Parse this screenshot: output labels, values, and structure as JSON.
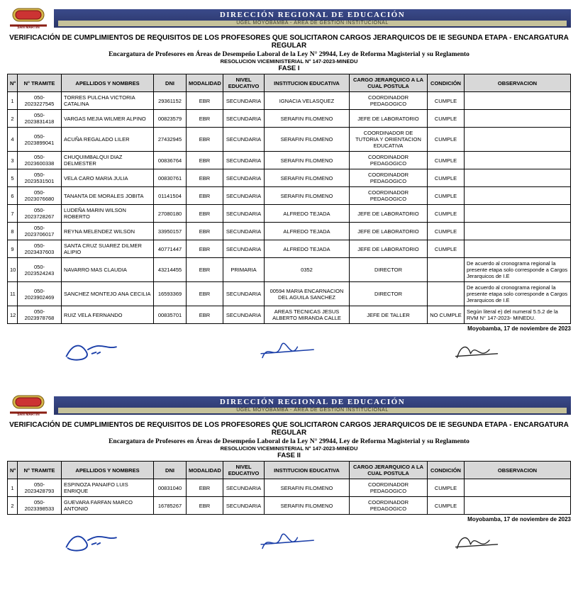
{
  "banner": {
    "line1": "DIRECCIÓN REGIONAL DE EDUCACIÓN",
    "line2": "UGEL MOYOBAMBA - ÁREA DE GESTIÓN INSTITUCIONAL"
  },
  "logo_text": "SAN MARTÍN",
  "titles": {
    "main": "VERIFICACIÓN DE CUMPLIMIENTOS DE REQUISITOS DE LOS PROFESORES QUE SOLICITARON CARGOS JERARQUICOS DE IE SEGUNDA ETAPA - ENCARGATURA REGULAR",
    "sub": "Encargatura de Profesores en Áreas de Desempeño Laboral de la Ley N° 29944, Ley de Reforma Magisterial y su Reglamento",
    "res": "RESOLUCION VICEMINISTERIAL N° 147-2023-MINEDU"
  },
  "fase1_label": "FASE I",
  "fase2_label": "FASE II",
  "columns": {
    "n": "N°",
    "tramite": "N° TRAMITE",
    "nombres": "APELLIDOS Y NOMBRES",
    "dni": "DNI",
    "modalidad": "MODALIDAD",
    "nivel": "NIVEL EDUCATIVO",
    "ie": "INSTITUCION EDUCATIVA",
    "cargo": "CARGO JERARQUICO A LA CUAL POSTULA",
    "condicion": "CONDICIÓN",
    "obs": "OBSERVACION"
  },
  "fase1_rows": [
    {
      "n": "1",
      "tr": "050-2023227545",
      "nom": "TORRES PULCHA VICTORIA CATALINA",
      "dni": "29361152",
      "mod": "EBR",
      "niv": "SECUNDARIA",
      "ie": "IGNACIA VELASQUEZ",
      "car": "COORDINADOR PEDAGOGICO",
      "cond": "CUMPLE",
      "obs": ""
    },
    {
      "n": "2",
      "tr": "050-2023831418",
      "nom": "VARGAS MEJIA WILMER ALPINO",
      "dni": "00823579",
      "mod": "EBR",
      "niv": "SECUNDARIA",
      "ie": "SERAFIN FILOMENO",
      "car": "JEFE DE LABORATORIO",
      "cond": "CUMPLE",
      "obs": ""
    },
    {
      "n": "4",
      "tr": "050-2023899041",
      "nom": "ACUÑA REGALADO LILER",
      "dni": "27432945",
      "mod": "EBR",
      "niv": "SECUNDARIA",
      "ie": "SERAFIN FILOMENO",
      "car": "COORDINADOR DE TUTORIA Y ORIENTACION EDUCATIVA",
      "cond": "CUMPLE",
      "obs": ""
    },
    {
      "n": "3",
      "tr": "050-2023600338",
      "nom": "CHUQUIMBALQUI DIAZ DELMESTER",
      "dni": "00836764",
      "mod": "EBR",
      "niv": "SECUNDARIA",
      "ie": "SERAFIN FILOMENO",
      "car": "COORDINADOR PEDAGOGICO",
      "cond": "CUMPLE",
      "obs": ""
    },
    {
      "n": "5",
      "tr": "050-2023531501",
      "nom": "VELA CARO MARIA JULIA",
      "dni": "00830761",
      "mod": "EBR",
      "niv": "SECUNDARIA",
      "ie": "SERAFIN FILOMENO",
      "car": "COORDINADOR PEDAGOGICO",
      "cond": "CUMPLE",
      "obs": ""
    },
    {
      "n": "6",
      "tr": "050-2023076680",
      "nom": "TANANTA DE MORALES JOBITA",
      "dni": "01141504",
      "mod": "EBR",
      "niv": "SECUNDARIA",
      "ie": "SERAFIN FILOMENO",
      "car": "COORDINADOR PEDAGOGICO",
      "cond": "CUMPLE",
      "obs": ""
    },
    {
      "n": "7",
      "tr": "050-2023728267",
      "nom": "LUDEÑA MARIN WILSON ROBERTO",
      "dni": "27080180",
      "mod": "EBR",
      "niv": "SECUNDARIA",
      "ie": "ALFREDO TEJADA",
      "car": "JEFE DE LABORATORIO",
      "cond": "CUMPLE",
      "obs": ""
    },
    {
      "n": "8",
      "tr": "050-2023706017",
      "nom": "REYNA MELENDEZ WILSON",
      "dni": "33950157",
      "mod": "EBR",
      "niv": "SECUNDARIA",
      "ie": "ALFREDO TEJADA",
      "car": "JEFE DE LABORATORIO",
      "cond": "CUMPLE",
      "obs": ""
    },
    {
      "n": "9",
      "tr": "050-2023437603",
      "nom": "SANTA CRUZ SUAREZ DILMER ALIPIO",
      "dni": "40771447",
      "mod": "EBR",
      "niv": "SECUNDARIA",
      "ie": "ALFREDO TEJADA",
      "car": "JEFE DE LABORATORIO",
      "cond": "CUMPLE",
      "obs": ""
    },
    {
      "n": "10",
      "tr": "050-2023524243",
      "nom": "NAVARRO MAS CLAUDIA",
      "dni": "43214455",
      "mod": "EBR",
      "niv": "PRIMARIA",
      "ie": "0352",
      "car": "DIRECTOR",
      "cond": "",
      "obs": "De acuerdo al cronograma regional la presente etapa solo corresponde a Cargos Jerarquicos de I.E"
    },
    {
      "n": "11",
      "tr": "050-2023902469",
      "nom": "SANCHEZ MONTEJO ANA CECILIA",
      "dni": "16593369",
      "mod": "EBR",
      "niv": "SECUNDARIA",
      "ie": "00594 MARIA ENCARNACION DEL AGUILA SANCHEZ",
      "car": "DIRECTOR",
      "cond": "",
      "obs": "De acuerdo al cronograma regional la presente etapa solo corresponde a Cargos Jerarquicos de I.E"
    },
    {
      "n": "12",
      "tr": "050-2023978768",
      "nom": "RUIZ VELA FERNANDO",
      "dni": "00835701",
      "mod": "EBR",
      "niv": "SECUNDARIA",
      "ie": "AREAS TECNICAS JESUS ALBERTO MIRANDA CALLE",
      "car": "JEFE DE TALLER",
      "cond": "NO CUMPLE",
      "obs": "Según literal e) del numeral 5.5.2 de la RVM N° 147-2023- MINEDU."
    }
  ],
  "fase2_rows": [
    {
      "n": "1",
      "tr": "050-2023428793",
      "nom": "ESPINOZA PANAIFO LUIS ENRIQUE",
      "dni": "00831040",
      "mod": "EBR",
      "niv": "SECUNDARIA",
      "ie": "SERAFIN FILOMENO",
      "car": "COORDINADOR PEDAGOGICO",
      "cond": "CUMPLE",
      "obs": ""
    },
    {
      "n": "2",
      "tr": "050-2023398533",
      "nom": "GUEVARA FARFAN MARCO ANTONIO",
      "dni": "16785267",
      "mod": "EBR",
      "niv": "SECUNDARIA",
      "ie": "SERAFIN FILOMENO",
      "car": "COORDINADOR PEDAGOGICO",
      "cond": "CUMPLE",
      "obs": ""
    }
  ],
  "footer_date": "Moyobamba, 17 de noviembre de 2023",
  "colors": {
    "header_bg": "#d8d8d8",
    "banner_bg": "#2f3d78",
    "banner_sub_bg": "#c6c29a"
  }
}
